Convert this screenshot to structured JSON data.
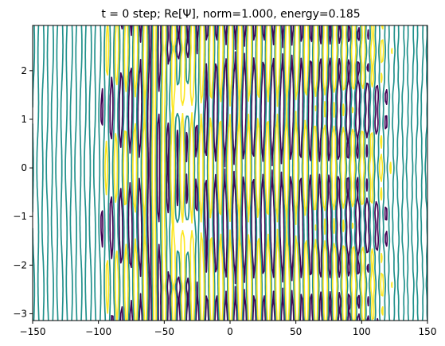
{
  "chart_data": {
    "type": "contour",
    "title": "t =  0 step; Re[Ψ], norm=1.000, energy=0.185",
    "xlabel": "",
    "ylabel": "",
    "xlim": [
      -150,
      150
    ],
    "ylim": [
      -3.14,
      2.93
    ],
    "xticks": [
      -150,
      -100,
      -50,
      0,
      50,
      100,
      150
    ],
    "xtick_labels": [
      "−150",
      "−100",
      "−50",
      "0",
      "50",
      "100",
      "150"
    ],
    "yticks": [
      -3,
      -2,
      -1,
      0,
      1,
      2
    ],
    "ytick_labels": [
      "−3",
      "−2",
      "−1",
      "0",
      "1",
      "2"
    ],
    "grid": false,
    "field": "Re[Ψ]",
    "contour_levels": [
      {
        "name": "low",
        "color": "#440154"
      },
      {
        "name": "zero",
        "color": "#21918c"
      },
      {
        "name": "high",
        "color": "#fde725"
      }
    ],
    "colors": {
      "low": "#440154",
      "mid": "#21918c",
      "high": "#fde725"
    }
  }
}
